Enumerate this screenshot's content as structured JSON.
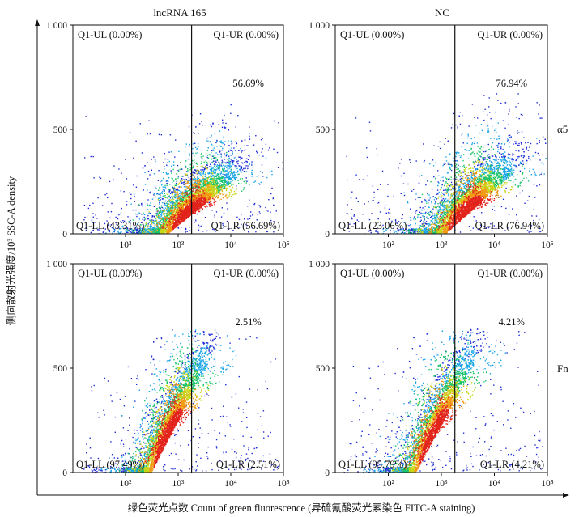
{
  "chart_data": {
    "type": "scatter",
    "description_axes": {
      "x_axis_title": "绿色荧光点数 Count of green fluorescence (异硫氰酸荧光素染色 FITC-A staining)",
      "y_axis_title": "侧向散射光强度/10³  SSC-A density"
    },
    "column_titles": [
      "lncRNA 165",
      "NC"
    ],
    "row_labels": [
      "α5",
      "Fn"
    ],
    "x_scale": "log",
    "x_ticks": [
      "10²",
      "10³",
      "10⁴",
      "10⁵"
    ],
    "y_ticks": [
      "0",
      "500",
      "1 000"
    ],
    "ylim": [
      0,
      1000
    ],
    "gate_x": 1800,
    "panels": [
      {
        "column": "lncRNA 165",
        "row": "α5",
        "quadrants": {
          "UL": "Q1-UL (0.00%)",
          "UR": "Q1-UR (0.00%)",
          "LL": "Q1-LL (43.31%)",
          "LR": "Q1-LR (56.69%)"
        },
        "highlight": "56.69%",
        "cloud": {
          "center_x_log": 3.2,
          "center_y": 110,
          "spread_x": 0.42,
          "spread_y": 70,
          "tilt": 85
        }
      },
      {
        "column": "NC",
        "row": "α5",
        "quadrants": {
          "UL": "Q1-UL (0.00%)",
          "UR": "Q1-UR (0.00%)",
          "LL": "Q1-LL (23.06%)",
          "LR": "Q1-LR (76.94%)"
        },
        "highlight": "76.94%",
        "cloud": {
          "center_x_log": 3.45,
          "center_y": 115,
          "spread_x": 0.42,
          "spread_y": 75,
          "tilt": 95
        }
      },
      {
        "column": "lncRNA 165",
        "row": "Fn",
        "quadrants": {
          "UL": "Q1-UL (0.00%)",
          "UR": "Q1-UR (0.00%)",
          "LL": "Q1-LL (97.49%)",
          "LR": "Q1-LR (2.51%)"
        },
        "highlight": "2.51%",
        "cloud": {
          "center_x_log": 2.8,
          "center_y": 190,
          "spread_x": 0.35,
          "spread_y": 90,
          "tilt": 170
        }
      },
      {
        "column": "NC",
        "row": "Fn",
        "quadrants": {
          "UL": "Q1-UL (0.00%)",
          "UR": "Q1-UR (0.00%)",
          "LL": "Q1-LL (95.79%)",
          "LR": "Q1-LR (4.21%)"
        },
        "highlight": "4.21%",
        "cloud": {
          "center_x_log": 2.85,
          "center_y": 195,
          "spread_x": 0.36,
          "spread_y": 92,
          "tilt": 170
        }
      }
    ]
  }
}
